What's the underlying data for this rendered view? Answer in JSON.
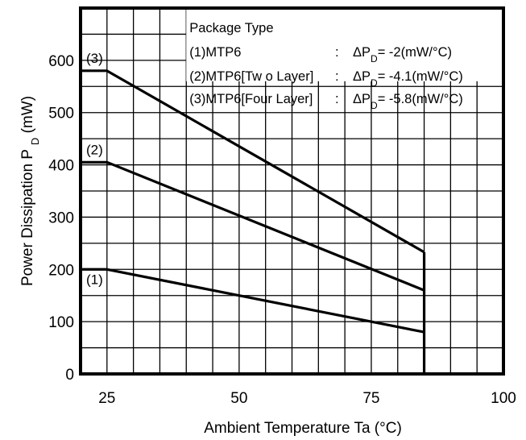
{
  "chart_data": {
    "type": "line",
    "xlabel": "Ambient Temperature Ta (°C)",
    "ylabel": {
      "main": "Power Dissipation P",
      "sub": "D",
      "unit": " (mW)"
    },
    "xlim": [
      20,
      100
    ],
    "ylim": [
      0,
      700
    ],
    "xticks": [
      {
        "value": 25,
        "label": "25"
      },
      {
        "value": 50,
        "label": "50"
      },
      {
        "value": 75,
        "label": "75"
      },
      {
        "value": 100,
        "label": "100"
      }
    ],
    "yticks": [
      {
        "value": 0,
        "label": "0"
      },
      {
        "value": 100,
        "label": "100"
      },
      {
        "value": 200,
        "label": "200"
      },
      {
        "value": 300,
        "label": "300"
      },
      {
        "value": 400,
        "label": "400"
      },
      {
        "value": 500,
        "label": "500"
      },
      {
        "value": 600,
        "label": "600"
      }
    ],
    "grid": true,
    "legend": {
      "title": "Package Type",
      "entries": [
        {
          "name": "(1)MTP6",
          "colon": ":",
          "delta": "ΔP",
          "sub": "D",
          "value": "= -2(mW/°C)"
        },
        {
          "name": "(2)MTP6[Tw o Layer]",
          "colon": ":",
          "delta": "ΔP",
          "sub": "D",
          "value": "= -4.1(mW/°C)"
        },
        {
          "name": "(3)MTP6[Four Layer]",
          "colon": ":",
          "delta": "ΔP",
          "sub": "D",
          "value": "= -5.8(mW/°C)"
        }
      ]
    },
    "series": [
      {
        "label": "(1)",
        "x": [
          20,
          25,
          85
        ],
        "y": [
          200,
          200,
          80
        ]
      },
      {
        "label": "(2)",
        "x": [
          20,
          25,
          85
        ],
        "y": [
          405,
          405,
          160
        ]
      },
      {
        "label": "(3)",
        "x": [
          20,
          25,
          85
        ],
        "y": [
          580,
          580,
          233
        ]
      }
    ],
    "cutoff": {
      "x": 85
    }
  }
}
